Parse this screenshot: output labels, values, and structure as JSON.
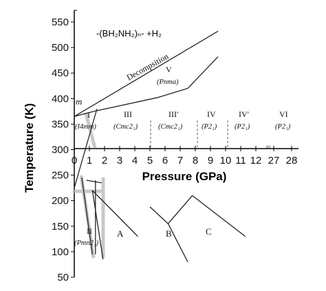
{
  "chart_data": {
    "type": "line",
    "title": "",
    "xlabel": "Pressure (GPa)",
    "ylabel": "Temperature (K)",
    "ylim": [
      50,
      550
    ],
    "y_ticks": [
      "50",
      "100",
      "150",
      "200",
      "250",
      "300",
      "350",
      "400",
      "450",
      "500",
      "550"
    ],
    "x_ticks": [
      "0",
      "1",
      "2",
      "3",
      "4",
      "5",
      "6",
      "7",
      "8",
      "9",
      "10",
      "11",
      "12",
      "27",
      "28"
    ],
    "x_break_marker": "≈",
    "formula": "-(BH₂NH₂)ₙ- +H₂",
    "labels": {
      "decomposition": "Decompsition",
      "melting": "m",
      "phase_V": "V",
      "phase_V_sub": "(Pnma)",
      "phase_I": "I",
      "phase_I_sub": "(I4mm)",
      "phase_III": "III",
      "phase_III_sub": "(Cmc2₁)",
      "phase_III_prime": "III′",
      "phase_III_prime_sub": "(Cmc2₁)",
      "phase_IV": "IV",
      "phase_IV_sub": "(P2₁)",
      "phase_IV_prime": "IV′",
      "phase_IV_prime_sub": "(P2₁)",
      "phase_VI": "VI",
      "phase_VI_sub": "(P2₁)",
      "phase_II": "II",
      "phase_II_sub": "(Pmn2₁)",
      "region_A": "A",
      "region_B": "B",
      "region_C": "C"
    },
    "series": [
      {
        "x": [
          0,
          9.5
        ],
        "y": [
          365,
          532
        ]
      },
      {
        "x": [
          1.3,
          5.5,
          7.5,
          9.5
        ],
        "y": [
          375,
          402,
          420,
          482
        ]
      },
      {
        "x": [
          0,
          1.3
        ],
        "y": [
          365,
          375
        ]
      },
      {
        "x": [
          0,
          1.5
        ],
        "y": [
          225,
          380
        ]
      },
      {
        "x": [
          1.2,
          4.2
        ],
        "y": [
          220,
          130
        ]
      },
      {
        "x": [
          5.0,
          6.2,
          7.5
        ],
        "y": [
          188,
          155,
          80
        ]
      },
      {
        "x": [
          6.2,
          7.8
        ],
        "y": [
          155,
          210
        ]
      },
      {
        "x": [
          7.8,
          11.3
        ],
        "y": [
          210,
          130
        ]
      },
      {
        "x": [
          1.2,
          1.9
        ],
        "y": [
          220,
          85
        ]
      },
      {
        "x": [
          0.8,
          1.8
        ],
        "y": [
          240,
          235
        ]
      },
      {
        "x": [
          1.4,
          1.4
        ],
        "y": [
          240,
          95
        ]
      },
      {
        "x": [
          0.5,
          1.2
        ],
        "y": [
          245,
          95
        ]
      }
    ],
    "phase_boundaries_dashed": [
      {
        "x": [
          5,
          5
        ],
        "y": [
          350,
          300
        ]
      },
      {
        "x": [
          8,
          8
        ],
        "y": [
          350,
          300
        ]
      },
      {
        "x": [
          10,
          10
        ],
        "y": [
          350,
          300
        ]
      }
    ]
  },
  "colors": {
    "line": "#222222",
    "gray_band": "#c8c8c8",
    "dashed": "#555555"
  }
}
